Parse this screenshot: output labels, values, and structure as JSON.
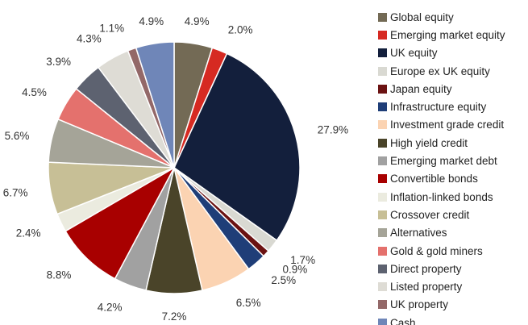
{
  "chart_data": {
    "type": "pie",
    "title": "",
    "start_angle_deg": 90,
    "direction": "clockwise",
    "legend_position": "right",
    "slices": [
      {
        "label": "Global equity",
        "value": 4.9,
        "display": "4.9%",
        "color": "#736a55"
      },
      {
        "label": "Emerging market equity",
        "value": 2.0,
        "display": "2.0%",
        "color": "#d62a22"
      },
      {
        "label": "UK equity",
        "value": 27.9,
        "display": "27.9%",
        "color": "#131f3c"
      },
      {
        "label": "Europe ex UK equity",
        "value": 1.7,
        "display": "1.7%",
        "color": "#d9d9d2"
      },
      {
        "label": "Japan equity",
        "value": 0.9,
        "display": "0.9%",
        "color": "#6b1212"
      },
      {
        "label": "Infrastructure equity",
        "value": 2.5,
        "display": "2.5%",
        "color": "#1f3e78"
      },
      {
        "label": "Investment grade credit",
        "value": 6.5,
        "display": "6.5%",
        "color": "#fbd3b2"
      },
      {
        "label": "High yield credit",
        "value": 7.2,
        "display": "7.2%",
        "color": "#4a4429"
      },
      {
        "label": "Emerging market debt",
        "value": 4.2,
        "display": "4.2%",
        "color": "#a1a1a1"
      },
      {
        "label": "Convertible bonds",
        "value": 8.8,
        "display": "8.8%",
        "color": "#a80000"
      },
      {
        "label": "Inflation-linked bonds",
        "value": 2.4,
        "display": "2.4%",
        "color": "#ebebdf"
      },
      {
        "label": "Crossover credit",
        "value": 6.7,
        "display": "6.7%",
        "color": "#c7bf96"
      },
      {
        "label": "Alternatives",
        "value": 5.6,
        "display": "5.6%",
        "color": "#a5a498"
      },
      {
        "label": "Gold & gold miners",
        "value": 4.5,
        "display": "4.5%",
        "color": "#e4716d"
      },
      {
        "label": "Direct property",
        "value": 3.9,
        "display": "3.9%",
        "color": "#5d6270"
      },
      {
        "label": "Listed property",
        "value": 4.3,
        "display": "4.3%",
        "color": "#dedcd5"
      },
      {
        "label": "UK property",
        "value": 1.1,
        "display": "1.1%",
        "color": "#936868"
      },
      {
        "label": "Cash",
        "value": 4.9,
        "display": "4.9%",
        "color": "#6f86b8"
      }
    ]
  }
}
